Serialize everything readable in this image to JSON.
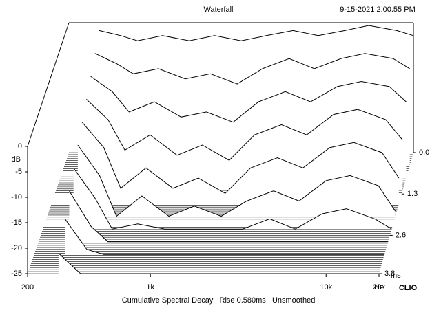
{
  "chart_data": {
    "type": "waterfall",
    "title": "Waterfall",
    "date": "9-15-2021 2.00.55 PM",
    "footer": "Cumulative Spectral Decay   Rise 0.580ms   Unsmoothed",
    "brand": "CLIO",
    "y_label": "dB",
    "x_unit": "Hz",
    "z_unit": "ms",
    "xlim": [
      200,
      20000
    ],
    "xticks": [
      200,
      {
        "value": 1000,
        "label": "1k"
      },
      {
        "value": 10000,
        "label": "10k"
      },
      {
        "value": 20000,
        "label": "20k"
      }
    ],
    "ylim": [
      -25,
      0
    ],
    "yticks": [
      0,
      -5,
      -10,
      -15,
      -20,
      -25
    ],
    "zlim": [
      0,
      3.8
    ],
    "zticks": [
      {
        "value": 0,
        "label": "0.0"
      },
      1.3,
      2.6,
      3.8
    ],
    "log_x": true,
    "line_color": "#000000",
    "x": [
      300,
      400,
      500,
      700,
      1000,
      1400,
      2000,
      2800,
      4000,
      5600,
      8000,
      11000,
      16000,
      20000
    ],
    "slices": [
      {
        "time": 0,
        "values": [
          -1,
          -2,
          -3,
          -2,
          -3,
          -2,
          -3,
          -2,
          -1,
          -2,
          -1,
          0,
          -1,
          -2
        ]
      },
      {
        "time": 0.4,
        "values": [
          -3,
          -5,
          -7,
          -6,
          -8,
          -7,
          -9,
          -6,
          -4,
          -6,
          -4,
          -3,
          -4,
          -6
        ]
      },
      {
        "time": 0.8,
        "values": [
          -5,
          -8,
          -12,
          -10,
          -13,
          -12,
          -14,
          -10,
          -8,
          -10,
          -7,
          -6,
          -7,
          -10
        ]
      },
      {
        "time": 1.2,
        "values": [
          -7,
          -11,
          -17,
          -14,
          -18,
          -16,
          -19,
          -14,
          -12,
          -14,
          -10,
          -9,
          -11,
          -15
        ]
      },
      {
        "time": 1.6,
        "values": [
          -9,
          -14,
          -22,
          -18,
          -22,
          -20,
          -23,
          -18,
          -16,
          -18,
          -14,
          -13,
          -15,
          -20
        ]
      },
      {
        "time": 2.0,
        "values": [
          -11,
          -17,
          -25,
          -21,
          -25,
          -23,
          -25,
          -22,
          -20,
          -22,
          -18,
          -17,
          -19,
          -24
        ]
      },
      {
        "time": 2.4,
        "values": [
          -13,
          -19,
          -25,
          -24,
          -25,
          -25,
          -25,
          -25,
          -23,
          -25,
          -22,
          -21,
          -23,
          -25
        ]
      },
      {
        "time": 2.8,
        "values": [
          -15,
          -22,
          -25,
          -25,
          -25,
          -25,
          -25,
          -25,
          -25,
          -25,
          -25,
          -25,
          -25,
          -25
        ]
      },
      {
        "time": 3.2,
        "values": [
          -18,
          -24,
          -25,
          -25,
          -25,
          -25,
          -25,
          -25,
          -25,
          -25,
          -25,
          -25,
          -25,
          -25
        ]
      },
      {
        "time": 3.8,
        "values": [
          -21,
          -25,
          -25,
          -25,
          -25,
          -25,
          -25,
          -25,
          -25,
          -25,
          -25,
          -25,
          -25,
          -25
        ]
      }
    ]
  }
}
